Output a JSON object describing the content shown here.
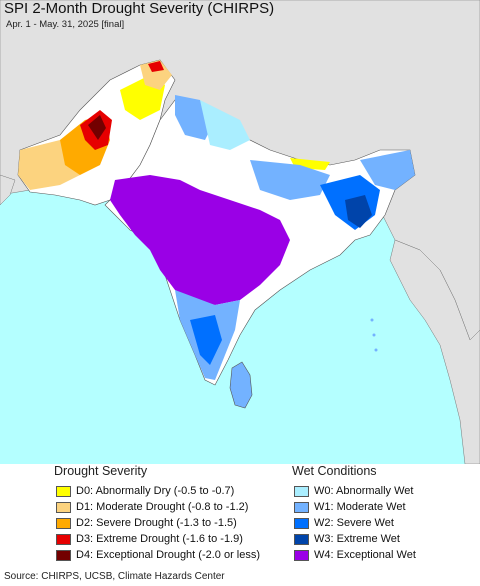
{
  "title": "SPI 2-Month Drought Severity (CHIRPS)",
  "subtitle": "Apr. 1 - May. 31, 2025 [final]",
  "legend": {
    "drought_heading": "Drought Severity",
    "wet_heading": "Wet Conditions",
    "drought": [
      {
        "label": "D0: Abnormally Dry (-0.5 to -0.7)",
        "color": "#ffff00"
      },
      {
        "label": "D1: Moderate Drought (-0.8 to -1.2)",
        "color": "#fcd37f"
      },
      {
        "label": "D2: Severe Drought (-1.3 to -1.5)",
        "color": "#ffaa00"
      },
      {
        "label": "D3: Extreme Drought (-1.6 to -1.9)",
        "color": "#e60000"
      },
      {
        "label": "D4: Exceptional Drought (-2.0 or less)",
        "color": "#730000"
      }
    ],
    "wet": [
      {
        "label": "W0: Abnormally Wet",
        "color": "#aaeeff"
      },
      {
        "label": "W1: Moderate Wet",
        "color": "#73b2ff"
      },
      {
        "label": "W2: Severe Wet",
        "color": "#0070ff"
      },
      {
        "label": "W3: Extreme Wet",
        "color": "#0044aa"
      },
      {
        "label": "W4: Exceptional Wet",
        "color": "#9a00e6"
      }
    ]
  },
  "source": "Source: CHIRPS, UCSB, Climate Hazards Center",
  "colors": {
    "ocean": "#b4ffff",
    "land": "#ffffff",
    "out_of_region": "#e1e1e1"
  }
}
